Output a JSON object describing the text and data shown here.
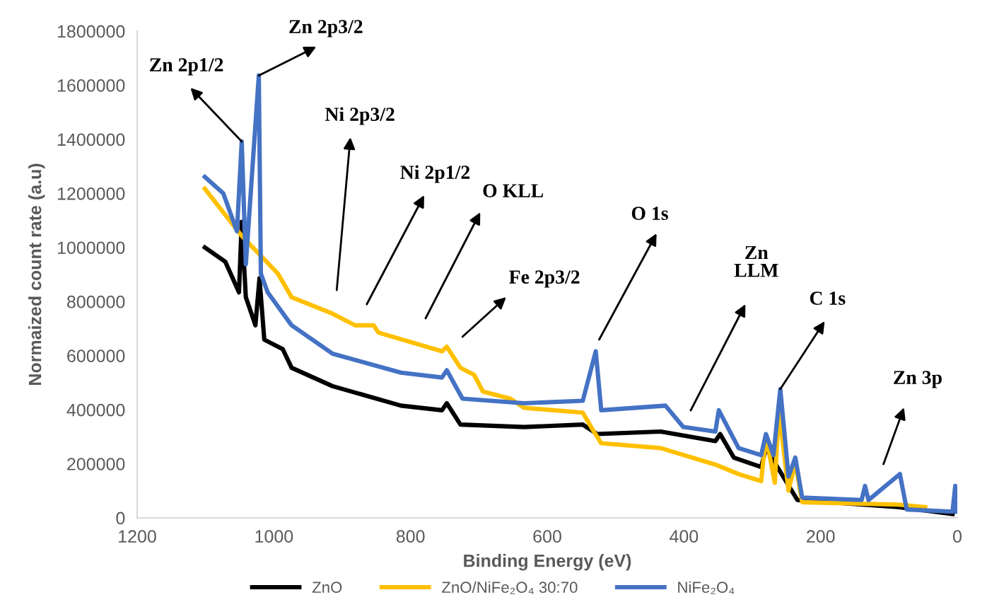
{
  "chart_data": {
    "type": "line",
    "xlabel": "Binding Energy (eV)",
    "ylabel": "Normaized count rate (a.u)",
    "xlim": [
      1200,
      0
    ],
    "xticks": [
      1200,
      1000,
      800,
      600,
      400,
      200,
      0
    ],
    "ylim": [
      0,
      1800000
    ],
    "yticks": [
      0,
      200000,
      400000,
      600000,
      800000,
      1000000,
      1200000,
      1400000,
      1600000,
      1800000
    ],
    "grid": false,
    "legend": "bottom",
    "marker": "none",
    "line_style": "solid",
    "series": [
      {
        "name": "ZnO",
        "color": "#000000",
        "x": [
          1101,
          1071,
          1051,
          1047,
          1041,
          1027,
          1021,
          1014,
          987,
          974,
          914,
          814,
          754,
          747,
          727,
          634,
          548,
          527,
          434,
          354,
          347,
          327,
          287,
          280,
          234,
          87,
          7
        ],
        "values": [
          1000000,
          947000,
          834000,
          1095000,
          816000,
          712000,
          886000,
          659000,
          624000,
          555000,
          487000,
          415000,
          398000,
          424000,
          345000,
          336000,
          345000,
          310000,
          319000,
          284000,
          310000,
          223000,
          188000,
          258000,
          66000,
          40000,
          14000
        ]
      },
      {
        "name": "ZnO/NiFe₂O₄ 30:70",
        "color": "#ffc000",
        "x": [
          1101,
          1074,
          1047,
          1014,
          994,
          974,
          914,
          881,
          854,
          847,
          754,
          747,
          727,
          707,
          694,
          654,
          634,
          548,
          534,
          521,
          434,
          354,
          320,
          287,
          280,
          267,
          261,
          247,
          237,
          227,
          87,
          47
        ],
        "values": [
          1217000,
          1130000,
          1043000,
          956000,
          903000,
          816000,
          755000,
          712000,
          712000,
          685000,
          616000,
          633000,
          555000,
          529000,
          467000,
          441000,
          407000,
          389000,
          328000,
          276000,
          258000,
          197000,
          162000,
          136000,
          302000,
          130000,
          398000,
          101000,
          205000,
          58000,
          49000,
          40000
        ]
      },
      {
        "name": "NiFe₂O₄",
        "color": "#4472c4",
        "x": [
          1101,
          1074,
          1054,
          1047,
          1041,
          1022,
          1019,
          1009,
          974,
          914,
          814,
          754,
          747,
          724,
          634,
          548,
          529,
          521,
          427,
          401,
          354,
          349,
          320,
          287,
          280,
          269,
          259,
          247,
          237,
          227,
          140,
          135,
          130,
          84,
          74,
          7,
          3,
          1
        ],
        "values": [
          1261000,
          1200000,
          1060000,
          1392000,
          938000,
          1636000,
          903000,
          834000,
          712000,
          607000,
          537000,
          519000,
          546000,
          441000,
          424000,
          433000,
          616000,
          398000,
          415000,
          336000,
          319000,
          398000,
          258000,
          232000,
          310000,
          232000,
          476000,
          153000,
          223000,
          75000,
          66000,
          118000,
          66000,
          162000,
          31000,
          23000,
          118000,
          23000
        ]
      }
    ],
    "annotations": [
      {
        "text": "Zn 2p1/2",
        "x": 1047,
        "y": 1392000
      },
      {
        "text": "Zn 2p3/2",
        "x": 1022,
        "y": 1636000
      },
      "Ni 2p3/2",
      "Ni 2p1/2",
      "O KLL",
      "Fe 2p3/2",
      "O 1s",
      "Zn\nLLM",
      {
        "text": "C 1s",
        "x": 259,
        "y": 476000
      },
      "Zn 3p"
    ]
  }
}
